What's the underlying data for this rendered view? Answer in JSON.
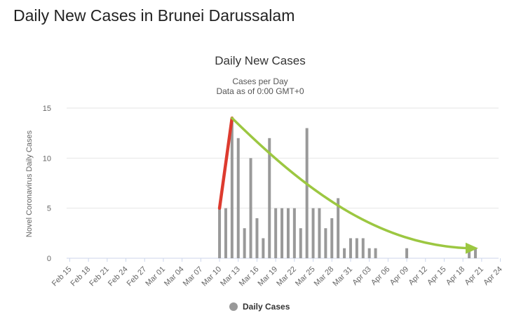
{
  "page": {
    "heading": "Daily New Cases in Brunei Darussalam"
  },
  "colors": {
    "bar": "#999999",
    "grid": "#e6e6e6",
    "text": "#333333",
    "axis_text": "#666666",
    "rise_arrow": "#dd3b2f",
    "decline_arrow": "#9cc741"
  },
  "chart_data": {
    "type": "bar",
    "title": "Daily New Cases",
    "subtitle_lines": [
      "Cases per Day",
      "Data as of 0:00 GMT+0"
    ],
    "ylabel": "Novel Coronavirus Daily Cases",
    "ylim": [
      0,
      15
    ],
    "yticks": [
      0,
      5,
      10,
      15
    ],
    "grid": true,
    "legend": {
      "label": "Daily Cases",
      "placement": "bottom-center"
    },
    "x_start": "2020-02-15",
    "xtick_labels": [
      "Feb 15",
      "Feb 18",
      "Feb 21",
      "Feb 24",
      "Feb 27",
      "Mar 01",
      "Mar 04",
      "Mar 07",
      "Mar 10",
      "Mar 13",
      "Mar 16",
      "Mar 19",
      "Mar 22",
      "Mar 25",
      "Mar 28",
      "Mar 31",
      "Apr 03",
      "Apr 06",
      "Apr 09",
      "Apr 12",
      "Apr 15",
      "Apr 18",
      "Apr 21",
      "Apr 24"
    ],
    "categories": [
      "Feb 15",
      "Feb 16",
      "Feb 17",
      "Feb 18",
      "Feb 19",
      "Feb 20",
      "Feb 21",
      "Feb 22",
      "Feb 23",
      "Feb 24",
      "Feb 25",
      "Feb 26",
      "Feb 27",
      "Feb 28",
      "Feb 29",
      "Mar 01",
      "Mar 02",
      "Mar 03",
      "Mar 04",
      "Mar 05",
      "Mar 06",
      "Mar 07",
      "Mar 08",
      "Mar 09",
      "Mar 10",
      "Mar 11",
      "Mar 12",
      "Mar 13",
      "Mar 14",
      "Mar 15",
      "Mar 16",
      "Mar 17",
      "Mar 18",
      "Mar 19",
      "Mar 20",
      "Mar 21",
      "Mar 22",
      "Mar 23",
      "Mar 24",
      "Mar 25",
      "Mar 26",
      "Mar 27",
      "Mar 28",
      "Mar 29",
      "Mar 30",
      "Mar 31",
      "Apr 01",
      "Apr 02",
      "Apr 03",
      "Apr 04",
      "Apr 05",
      "Apr 06",
      "Apr 07",
      "Apr 08",
      "Apr 09",
      "Apr 10",
      "Apr 11",
      "Apr 12",
      "Apr 13",
      "Apr 14",
      "Apr 15",
      "Apr 16",
      "Apr 17",
      "Apr 18",
      "Apr 19",
      "Apr 20",
      "Apr 21",
      "Apr 22",
      "Apr 23",
      "Apr 24",
      "Apr 25"
    ],
    "values": [
      0,
      0,
      0,
      0,
      0,
      0,
      0,
      0,
      0,
      0,
      0,
      0,
      0,
      0,
      0,
      0,
      0,
      0,
      0,
      0,
      0,
      0,
      0,
      0,
      5,
      5,
      14,
      12,
      3,
      10,
      4,
      2,
      12,
      5,
      5,
      5,
      5,
      3,
      13,
      5,
      5,
      3,
      4,
      6,
      1,
      2,
      2,
      2,
      1,
      1,
      0,
      0,
      0,
      0,
      1,
      0,
      0,
      0,
      0,
      0,
      0,
      0,
      0,
      0,
      1,
      1,
      0,
      0,
      0,
      0,
      0
    ],
    "annotations": [
      {
        "type": "rise-arrow",
        "from": [
          "Mar 10",
          5
        ],
        "to": [
          "Mar 12",
          14
        ]
      },
      {
        "type": "decline-arrow",
        "from": [
          "Mar 12",
          14
        ],
        "to": [
          "Apr 20",
          1
        ]
      }
    ]
  }
}
